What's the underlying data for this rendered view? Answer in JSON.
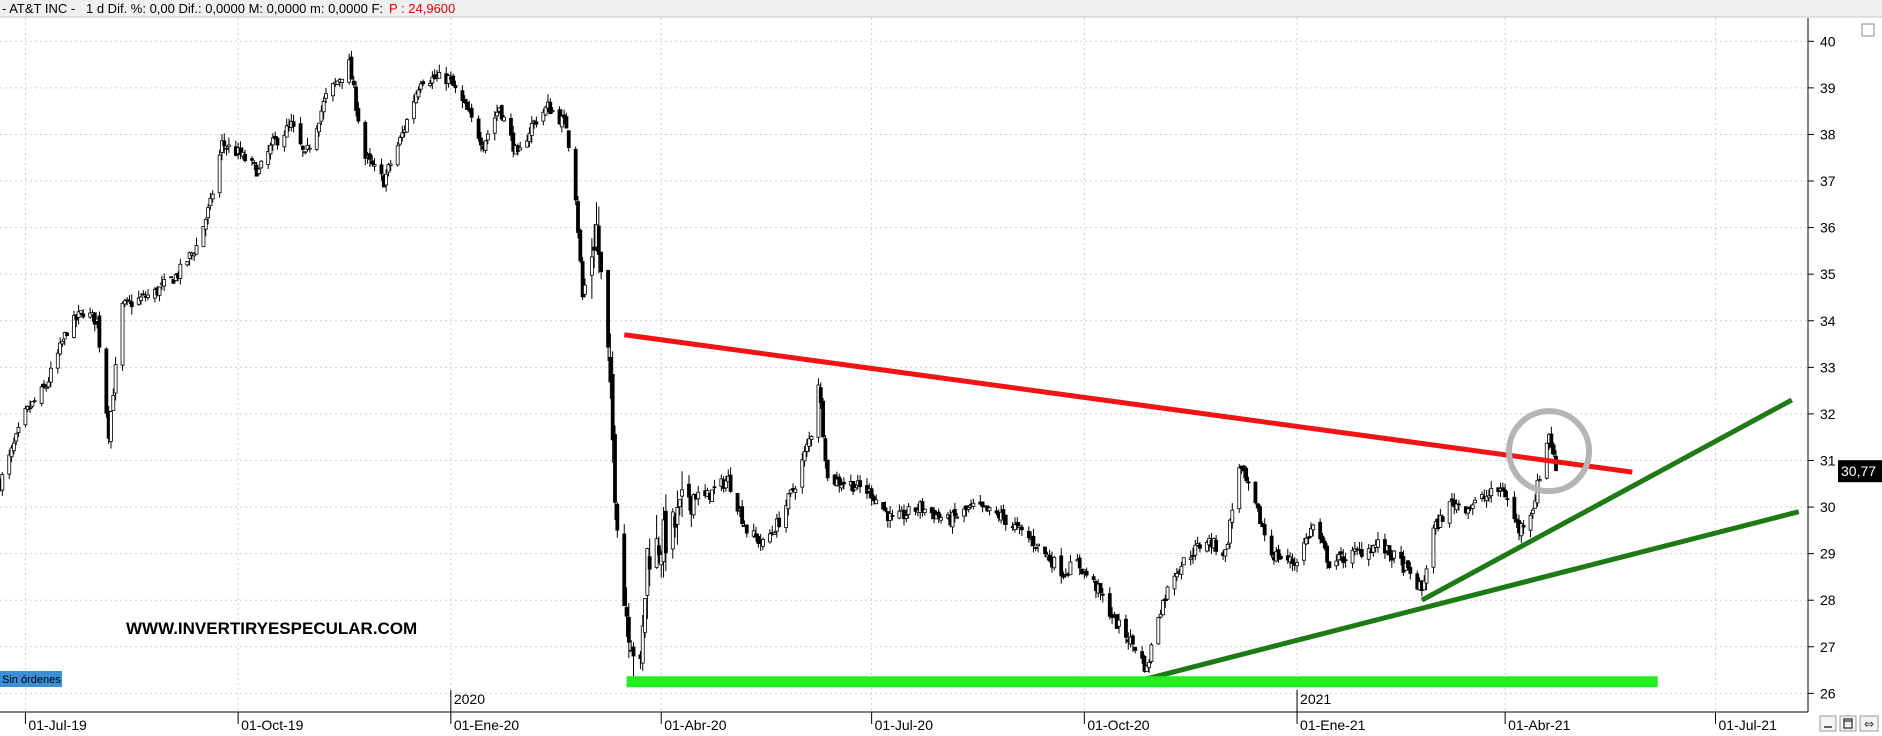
{
  "header": {
    "prefix": "- AT&T INC -",
    "fields": "1 d Dif. %: 0,00  Dif.: 0,0000  M: 0,0000  m: 0,0000  F:",
    "price_label": "P : 24,9600",
    "price_color": "#e00000"
  },
  "watermark": "WWW.INVERTIRYESPECULAR.COM",
  "orders_badge": "Sin órdenes",
  "orders_badge_color": "#3a8fd8",
  "year_labels": [
    "2020",
    "2021"
  ],
  "last_price": "30,77",
  "window_buttons": [
    "minimize-icon",
    "restore-icon"
  ],
  "chart_data": {
    "type": "candlestick",
    "title": "",
    "xlabel": "",
    "ylabel": "",
    "x_ticks": [
      "01-Jul-19",
      "01-Oct-19",
      "01-Ene-20",
      "01-Abr-20",
      "01-Jul-20",
      "01-Oct-20",
      "01-Ene-21",
      "01-Abr-21",
      "01-Jul-21"
    ],
    "x_range": [
      "2019-06-20",
      "2021-08-10"
    ],
    "y_ticks": [
      26,
      27,
      28,
      29,
      30,
      31,
      32,
      33,
      34,
      35,
      36,
      37,
      38,
      39,
      40
    ],
    "ylim": [
      25.6,
      40.5
    ],
    "grid": true,
    "price_path": [
      [
        "2019-06-20",
        30.5
      ],
      [
        "2019-07-01",
        32.0
      ],
      [
        "2019-07-10",
        32.6
      ],
      [
        "2019-07-19",
        33.8
      ],
      [
        "2019-07-26",
        34.2
      ],
      [
        "2019-08-01",
        34.0
      ],
      [
        "2019-08-06",
        31.6
      ],
      [
        "2019-08-12",
        34.3
      ],
      [
        "2019-08-26",
        34.6
      ],
      [
        "2019-09-05",
        35.0
      ],
      [
        "2019-09-13",
        35.6
      ],
      [
        "2019-09-19",
        36.5
      ],
      [
        "2019-09-24",
        37.8
      ],
      [
        "2019-10-01",
        37.6
      ],
      [
        "2019-10-10",
        37.2
      ],
      [
        "2019-10-16",
        37.8
      ],
      [
        "2019-10-24",
        38.2
      ],
      [
        "2019-10-30",
        37.5
      ],
      [
        "2019-11-08",
        38.8
      ],
      [
        "2019-11-18",
        39.5
      ],
      [
        "2019-11-25",
        37.5
      ],
      [
        "2019-12-03",
        37.0
      ],
      [
        "2019-12-11",
        38.0
      ],
      [
        "2019-12-19",
        39.2
      ],
      [
        "2019-12-31",
        39.2
      ],
      [
        "2020-01-08",
        38.5
      ],
      [
        "2020-01-15",
        37.8
      ],
      [
        "2020-01-22",
        38.6
      ],
      [
        "2020-01-30",
        37.5
      ],
      [
        "2020-02-05",
        38.2
      ],
      [
        "2020-02-12",
        38.6
      ],
      [
        "2020-02-20",
        38.2
      ],
      [
        "2020-02-24",
        36.7
      ],
      [
        "2020-02-27",
        34.5
      ],
      [
        "2020-03-04",
        36.0
      ],
      [
        "2020-03-09",
        33.2
      ],
      [
        "2020-03-12",
        30.5
      ],
      [
        "2020-03-16",
        28.0
      ],
      [
        "2020-03-20",
        27.0
      ],
      [
        "2020-03-23",
        26.4
      ],
      [
        "2020-03-26",
        29.0
      ],
      [
        "2020-03-31",
        29.2
      ],
      [
        "2020-04-06",
        29.5
      ],
      [
        "2020-04-13",
        30.3
      ],
      [
        "2020-04-20",
        30.2
      ],
      [
        "2020-04-30",
        30.6
      ],
      [
        "2020-05-08",
        29.5
      ],
      [
        "2020-05-15",
        29.2
      ],
      [
        "2020-05-22",
        29.7
      ],
      [
        "2020-05-29",
        30.5
      ],
      [
        "2020-06-05",
        31.6
      ],
      [
        "2020-06-08",
        32.7
      ],
      [
        "2020-06-12",
        30.6
      ],
      [
        "2020-06-22",
        30.5
      ],
      [
        "2020-07-01",
        30.3
      ],
      [
        "2020-07-10",
        29.7
      ],
      [
        "2020-07-22",
        30.0
      ],
      [
        "2020-08-03",
        29.7
      ],
      [
        "2020-08-14",
        30.0
      ],
      [
        "2020-08-26",
        29.8
      ],
      [
        "2020-09-08",
        29.3
      ],
      [
        "2020-09-22",
        28.6
      ],
      [
        "2020-09-28",
        28.8
      ],
      [
        "2020-10-06",
        28.3
      ],
      [
        "2020-10-15",
        27.5
      ],
      [
        "2020-10-23",
        27.0
      ],
      [
        "2020-10-28",
        26.5
      ],
      [
        "2020-11-02",
        27.7
      ],
      [
        "2020-11-09",
        28.6
      ],
      [
        "2020-11-16",
        29.0
      ],
      [
        "2020-11-23",
        29.3
      ],
      [
        "2020-12-01",
        29.0
      ],
      [
        "2020-12-07",
        30.9
      ],
      [
        "2020-12-14",
        30.0
      ],
      [
        "2020-12-21",
        29.0
      ],
      [
        "2020-12-31",
        28.8
      ],
      [
        "2021-01-08",
        29.6
      ],
      [
        "2021-01-15",
        28.8
      ],
      [
        "2021-01-26",
        29.0
      ],
      [
        "2021-02-05",
        29.2
      ],
      [
        "2021-02-15",
        28.8
      ],
      [
        "2021-02-24",
        28.2
      ],
      [
        "2021-03-01",
        29.5
      ],
      [
        "2021-03-09",
        30.1
      ],
      [
        "2021-03-16",
        30.0
      ],
      [
        "2021-03-23",
        30.2
      ],
      [
        "2021-03-31",
        30.4
      ],
      [
        "2021-04-07",
        29.5
      ],
      [
        "2021-04-13",
        30.0
      ],
      [
        "2021-04-20",
        31.6
      ],
      [
        "2021-04-23",
        30.8
      ]
    ],
    "trendlines": [
      {
        "label": "resistance",
        "color": "#f01414",
        "points": [
          [
            "2020-03-16",
            33.7
          ],
          [
            "2021-05-26",
            30.75
          ]
        ]
      },
      {
        "label": "support-lower-uptrend",
        "color": "#1e7a14",
        "points": [
          [
            "2020-10-27",
            26.3
          ],
          [
            "2021-08-06",
            29.9
          ]
        ]
      },
      {
        "label": "support-upper-uptrend",
        "color": "#1e7a14",
        "points": [
          [
            "2021-02-24",
            28.0
          ],
          [
            "2021-08-03",
            32.3
          ]
        ]
      },
      {
        "label": "support-band",
        "color": "#22ee22",
        "points": [
          [
            "2020-03-17",
            26.25
          ],
          [
            "2021-06-06",
            26.25
          ]
        ]
      }
    ],
    "highlight_circle": {
      "date": "2021-04-20",
      "value": 31.2,
      "color": "#b5b5b5"
    }
  }
}
